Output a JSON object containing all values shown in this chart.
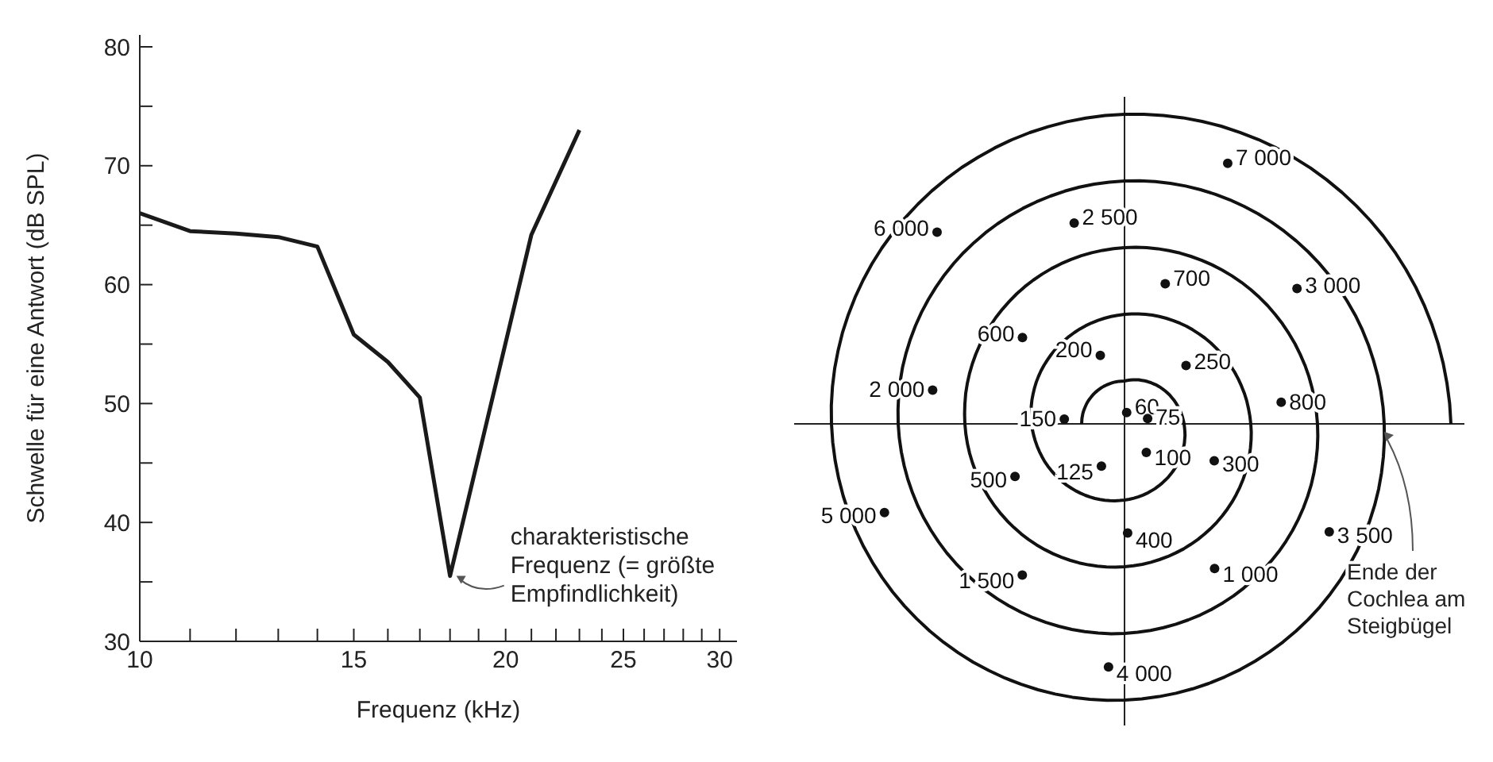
{
  "chart_data": [
    {
      "type": "line",
      "xlabel": "Frequenz (kHz)",
      "ylabel": "Schwelle für eine Antwort (dB SPL)",
      "log": "x",
      "grid": false,
      "legend": false,
      "marker": "none",
      "x": [
        10,
        11,
        12,
        13,
        14,
        15,
        16,
        17,
        18,
        21,
        23
      ],
      "series": [
        {
          "color": "#1a1a1a",
          "values": [
            66,
            64.5,
            64.3,
            64,
            63.2,
            55.8,
            53.5,
            50.5,
            35.5,
            64.2,
            73
          ]
        }
      ],
      "xlim": [
        10,
        31
      ],
      "xticks": [
        10,
        {
          "value": 11,
          "label": null
        },
        {
          "value": 12,
          "label": null
        },
        {
          "value": 13,
          "label": null
        },
        {
          "value": 14,
          "label": null
        },
        15,
        {
          "value": 16,
          "label": null
        },
        {
          "value": 17,
          "label": null
        },
        {
          "value": 18,
          "label": null
        },
        {
          "value": 19,
          "label": null
        },
        20,
        {
          "value": 21,
          "label": null
        },
        {
          "value": 22,
          "label": null
        },
        {
          "value": 23,
          "label": null
        },
        {
          "value": 24,
          "label": null
        },
        25,
        {
          "value": 26,
          "label": null
        },
        {
          "value": 27,
          "label": null
        },
        {
          "value": 28,
          "label": null
        },
        {
          "value": 29,
          "label": null
        },
        30
      ],
      "ylim": [
        30,
        81
      ],
      "yticks": [
        30,
        {
          "value": 35,
          "label": null
        },
        40,
        {
          "value": 45,
          "label": null
        },
        50,
        {
          "value": 55,
          "label": null
        },
        60,
        {
          "value": 65,
          "label": null
        },
        70,
        {
          "value": 75,
          "label": null
        },
        80
      ],
      "annotations": [
        {
          "text": "charakteristische Frequenz (= größte Empfindlichkeit)",
          "x": 18,
          "y": 35.5
        }
      ]
    },
    {
      "type": "other",
      "categories": [
        "60",
        "75",
        "100",
        "125",
        "150",
        "200",
        "250",
        "300",
        "400",
        "500",
        "600",
        "700",
        "800",
        "1 000",
        "1 500",
        "2 000",
        "2 500",
        "3 000",
        "3 500",
        "4 000",
        "5 000",
        "6 000",
        "7 000"
      ],
      "color": "#111111",
      "annotations": [
        "Ende der Cochlea am Steigbügel"
      ]
    }
  ]
}
